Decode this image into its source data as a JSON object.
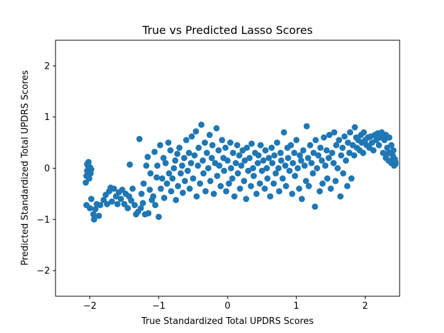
{
  "chart_data": {
    "type": "scatter",
    "title": "True vs Predicted Lasso Scores",
    "xlabel": "True Standardized Total UPDRS Scores",
    "ylabel": "Predicted Standardized Total UPDRS Scores",
    "xlim": [
      -2.5,
      2.5
    ],
    "ylim": [
      -2.5,
      2.5
    ],
    "xticks": [
      -2,
      -1,
      0,
      1,
      2
    ],
    "yticks": [
      -2,
      -1,
      0,
      1,
      2
    ],
    "xtick_labels": [
      "−2",
      "−1",
      "0",
      "1",
      "2"
    ],
    "ytick_labels": [
      "−2",
      "−1",
      "0",
      "1",
      "2"
    ],
    "grid": false,
    "legend": "none",
    "marker_color": "#1f77b4",
    "series": [
      {
        "points": [
          [
            -2.06,
            -0.28
          ],
          [
            -2.05,
            -0.15
          ],
          [
            -2.04,
            -0.05
          ],
          [
            -2.03,
            0.05
          ],
          [
            -2.02,
            0.12
          ],
          [
            -2.01,
            -0.2
          ],
          [
            -2.0,
            0.02
          ],
          [
            -1.99,
            -0.1
          ],
          [
            -1.98,
            -0.02
          ],
          [
            -2.04,
            0.08
          ],
          [
            -2.05,
            -0.72
          ],
          [
            -2.0,
            -0.78
          ],
          [
            -1.98,
            -0.6
          ],
          [
            -1.95,
            -0.9
          ],
          [
            -1.94,
            -1.0
          ],
          [
            -1.92,
            -0.8
          ],
          [
            -1.9,
            -0.7
          ],
          [
            -1.87,
            -0.93
          ],
          [
            -1.85,
            -0.72
          ],
          [
            -1.8,
            -0.62
          ],
          [
            -1.77,
            -0.52
          ],
          [
            -1.75,
            -0.7
          ],
          [
            -1.72,
            -0.45
          ],
          [
            -1.7,
            -0.38
          ],
          [
            -1.68,
            -0.65
          ],
          [
            -1.65,
            -0.4
          ],
          [
            -1.62,
            -0.55
          ],
          [
            -1.6,
            -0.7
          ],
          [
            -1.58,
            -0.47
          ],
          [
            -1.55,
            -0.6
          ],
          [
            -1.53,
            -0.42
          ],
          [
            -1.5,
            -0.7
          ],
          [
            -1.48,
            -0.5
          ],
          [
            -1.45,
            -0.78
          ],
          [
            -1.43,
            -0.55
          ],
          [
            -1.42,
            0.07
          ],
          [
            -1.4,
            -0.63
          ],
          [
            -1.38,
            -0.4
          ],
          [
            -1.35,
            -0.72
          ],
          [
            -1.33,
            -0.9
          ],
          [
            -1.3,
            -0.85
          ],
          [
            -1.28,
            0.57
          ],
          [
            -1.26,
            -0.78
          ],
          [
            -1.25,
            -0.5
          ],
          [
            -1.23,
            -0.68
          ],
          [
            -1.22,
            -0.3
          ],
          [
            -1.2,
            -0.9
          ],
          [
            -1.18,
            0.05
          ],
          [
            -1.16,
            0.22
          ],
          [
            -1.15,
            -0.88
          ],
          [
            -1.13,
            -0.42
          ],
          [
            -1.12,
            -0.1
          ],
          [
            -1.1,
            -0.62
          ],
          [
            -1.08,
            -0.55
          ],
          [
            -1.06,
            0.32
          ],
          [
            -1.05,
            -0.72
          ],
          [
            -1.03,
            -0.18
          ],
          [
            -1.02,
            0.05
          ],
          [
            -1.0,
            -0.95
          ],
          [
            -0.98,
            0.45
          ],
          [
            -0.97,
            -0.4
          ],
          [
            -0.95,
            -0.2
          ],
          [
            -0.93,
            0.2
          ],
          [
            -0.92,
            -0.58
          ],
          [
            -0.9,
            0.1
          ],
          [
            -0.88,
            -0.3
          ],
          [
            -0.86,
            0.5
          ],
          [
            -0.85,
            -0.1
          ],
          [
            -0.83,
            0.35
          ],
          [
            -0.82,
            -0.45
          ],
          [
            -0.8,
            -0.2
          ],
          [
            -0.78,
            0.0
          ],
          [
            -0.76,
            0.15
          ],
          [
            -0.75,
            -0.62
          ],
          [
            -0.73,
            0.28
          ],
          [
            -0.72,
            -0.35
          ],
          [
            -0.7,
            0.4
          ],
          [
            -0.68,
            -0.1
          ],
          [
            -0.66,
            0.05
          ],
          [
            -0.65,
            -0.48
          ],
          [
            -0.63,
            0.2
          ],
          [
            -0.62,
            -0.25
          ],
          [
            -0.6,
            0.55
          ],
          [
            -0.58,
            -0.05
          ],
          [
            -0.56,
            0.3
          ],
          [
            -0.55,
            -0.4
          ],
          [
            -0.53,
            0.1
          ],
          [
            -0.52,
            0.62
          ],
          [
            -0.5,
            -0.2
          ],
          [
            -0.48,
            0.25
          ],
          [
            -0.46,
            0.72
          ],
          [
            -0.45,
            -0.55
          ],
          [
            -0.43,
            0.05
          ],
          [
            -0.42,
            0.4
          ],
          [
            -0.4,
            -0.3
          ],
          [
            -0.38,
            0.85
          ],
          [
            -0.36,
            0.15
          ],
          [
            -0.35,
            -0.1
          ],
          [
            -0.33,
            0.5
          ],
          [
            -0.32,
            -0.45
          ],
          [
            -0.3,
            0.3
          ],
          [
            -0.28,
            0.0
          ],
          [
            -0.26,
            0.65
          ],
          [
            -0.25,
            -0.25
          ],
          [
            -0.23,
            0.2
          ],
          [
            -0.22,
            0.45
          ],
          [
            -0.2,
            -0.5
          ],
          [
            -0.18,
            0.1
          ],
          [
            -0.16,
            0.78
          ],
          [
            -0.15,
            -0.15
          ],
          [
            -0.13,
            0.35
          ],
          [
            -0.12,
            0.05
          ],
          [
            -0.1,
            -0.35
          ],
          [
            -0.08,
            0.55
          ],
          [
            -0.06,
            0.2
          ],
          [
            -0.05,
            -0.05
          ],
          [
            -0.03,
            0.4
          ],
          [
            -0.02,
            -0.45
          ],
          [
            0.0,
            0.15
          ],
          [
            0.02,
            -0.3
          ],
          [
            0.04,
            0.5
          ],
          [
            0.05,
            0.0
          ],
          [
            0.07,
            -0.2
          ],
          [
            0.08,
            0.3
          ],
          [
            0.1,
            -0.55
          ],
          [
            0.12,
            0.1
          ],
          [
            0.14,
            0.45
          ],
          [
            0.15,
            -0.1
          ],
          [
            0.17,
            0.25
          ],
          [
            0.18,
            -0.4
          ],
          [
            0.2,
            0.05
          ],
          [
            0.22,
            0.35
          ],
          [
            0.24,
            -0.25
          ],
          [
            0.25,
            0.15
          ],
          [
            0.27,
            -0.6
          ],
          [
            0.28,
            0.4
          ],
          [
            0.3,
            -0.05
          ],
          [
            0.32,
            0.2
          ],
          [
            0.34,
            -0.35
          ],
          [
            0.35,
            0.48
          ],
          [
            0.37,
            0.0
          ],
          [
            0.38,
            -0.15
          ],
          [
            0.4,
            0.3
          ],
          [
            0.42,
            -0.5
          ],
          [
            0.44,
            0.1
          ],
          [
            0.45,
            0.25
          ],
          [
            0.47,
            -0.3
          ],
          [
            0.48,
            0.45
          ],
          [
            0.5,
            -0.05
          ],
          [
            0.52,
            0.15
          ],
          [
            0.54,
            -0.4
          ],
          [
            0.55,
            0.35
          ],
          [
            0.57,
            0.0
          ],
          [
            0.58,
            -0.2
          ],
          [
            0.6,
            0.2
          ],
          [
            0.62,
            -0.55
          ],
          [
            0.64,
            0.4
          ],
          [
            0.65,
            0.1
          ],
          [
            0.67,
            -0.3
          ],
          [
            0.68,
            0.25
          ],
          [
            0.7,
            -0.1
          ],
          [
            0.72,
            0.5
          ],
          [
            0.74,
            0.0
          ],
          [
            0.75,
            -0.45
          ],
          [
            0.77,
            0.3
          ],
          [
            0.78,
            0.15
          ],
          [
            0.8,
            -0.2
          ],
          [
            0.82,
            0.7
          ],
          [
            0.84,
            0.05
          ],
          [
            0.85,
            -0.35
          ],
          [
            0.87,
            0.4
          ],
          [
            0.88,
            0.2
          ],
          [
            0.9,
            -0.05
          ],
          [
            0.92,
            0.45
          ],
          [
            0.94,
            -0.5
          ],
          [
            0.95,
            0.1
          ],
          [
            0.97,
            0.3
          ],
          [
            0.98,
            -0.15
          ],
          [
            1.0,
            0.55
          ],
          [
            1.02,
            0.0
          ],
          [
            1.04,
            -0.4
          ],
          [
            1.05,
            0.25
          ],
          [
            1.07,
            0.15
          ],
          [
            1.08,
            -0.6
          ],
          [
            1.1,
            0.35
          ],
          [
            1.12,
            0.05
          ],
          [
            1.14,
            -0.25
          ],
          [
            1.15,
            0.82
          ],
          [
            1.17,
            0.2
          ],
          [
            1.18,
            -0.35
          ],
          [
            1.2,
            0.45
          ],
          [
            1.22,
            0.1
          ],
          [
            1.24,
            -0.1
          ],
          [
            1.25,
            0.3
          ],
          [
            1.27,
            -0.75
          ],
          [
            1.28,
            0.55
          ],
          [
            1.3,
            0.0
          ],
          [
            1.32,
            0.25
          ],
          [
            1.34,
            -0.45
          ],
          [
            1.35,
            0.4
          ],
          [
            1.37,
            0.15
          ],
          [
            1.38,
            -0.3
          ],
          [
            1.4,
            0.6
          ],
          [
            1.42,
            0.05
          ],
          [
            1.44,
            0.35
          ],
          [
            1.45,
            -0.2
          ],
          [
            1.47,
            0.2
          ],
          [
            1.48,
            0.65
          ],
          [
            1.5,
            -0.4
          ],
          [
            1.52,
            0.3
          ],
          [
            1.54,
            0.1
          ],
          [
            1.55,
            0.7
          ],
          [
            1.57,
            -0.25
          ],
          [
            1.58,
            0.45
          ],
          [
            1.6,
            0.0
          ],
          [
            1.62,
            0.55
          ],
          [
            1.64,
            -0.55
          ],
          [
            1.65,
            0.25
          ],
          [
            1.67,
            0.4
          ],
          [
            1.68,
            -0.1
          ],
          [
            1.7,
            0.62
          ],
          [
            1.72,
            0.15
          ],
          [
            1.74,
            -0.35
          ],
          [
            1.75,
            0.5
          ],
          [
            1.77,
            0.3
          ],
          [
            1.78,
            0.7
          ],
          [
            1.8,
            -0.2
          ],
          [
            1.82,
            0.45
          ],
          [
            1.84,
            0.25
          ],
          [
            1.85,
            0.8
          ],
          [
            1.87,
            0.6
          ],
          [
            1.88,
            0.4
          ],
          [
            1.9,
            0.55
          ],
          [
            1.92,
            0.35
          ],
          [
            1.94,
            0.65
          ],
          [
            1.95,
            0.5
          ],
          [
            1.97,
            0.3
          ],
          [
            1.98,
            0.7
          ],
          [
            2.0,
            0.55
          ],
          [
            2.02,
            0.45
          ],
          [
            2.04,
            0.6
          ],
          [
            2.06,
            0.4
          ],
          [
            2.08,
            0.62
          ],
          [
            2.1,
            0.5
          ],
          [
            2.12,
            0.35
          ],
          [
            2.14,
            0.65
          ],
          [
            2.16,
            0.55
          ],
          [
            2.18,
            0.68
          ],
          [
            2.2,
            0.45
          ],
          [
            2.22,
            0.6
          ],
          [
            2.24,
            0.7
          ],
          [
            2.26,
            0.3
          ],
          [
            2.28,
            0.55
          ],
          [
            2.3,
            0.2
          ],
          [
            2.32,
            0.4
          ],
          [
            2.34,
            0.15
          ],
          [
            2.36,
            0.3
          ],
          [
            2.38,
            0.1
          ],
          [
            2.4,
            0.25
          ],
          [
            2.42,
            0.05
          ],
          [
            2.43,
            0.18
          ],
          [
            2.44,
            0.08
          ],
          [
            2.35,
            0.6
          ],
          [
            2.3,
            0.65
          ],
          [
            2.25,
            0.62
          ],
          [
            2.38,
            0.45
          ],
          [
            2.41,
            0.35
          ],
          [
            2.39,
            0.15
          ],
          [
            2.44,
            0.12
          ],
          [
            2.32,
            0.28
          ]
        ]
      }
    ]
  }
}
